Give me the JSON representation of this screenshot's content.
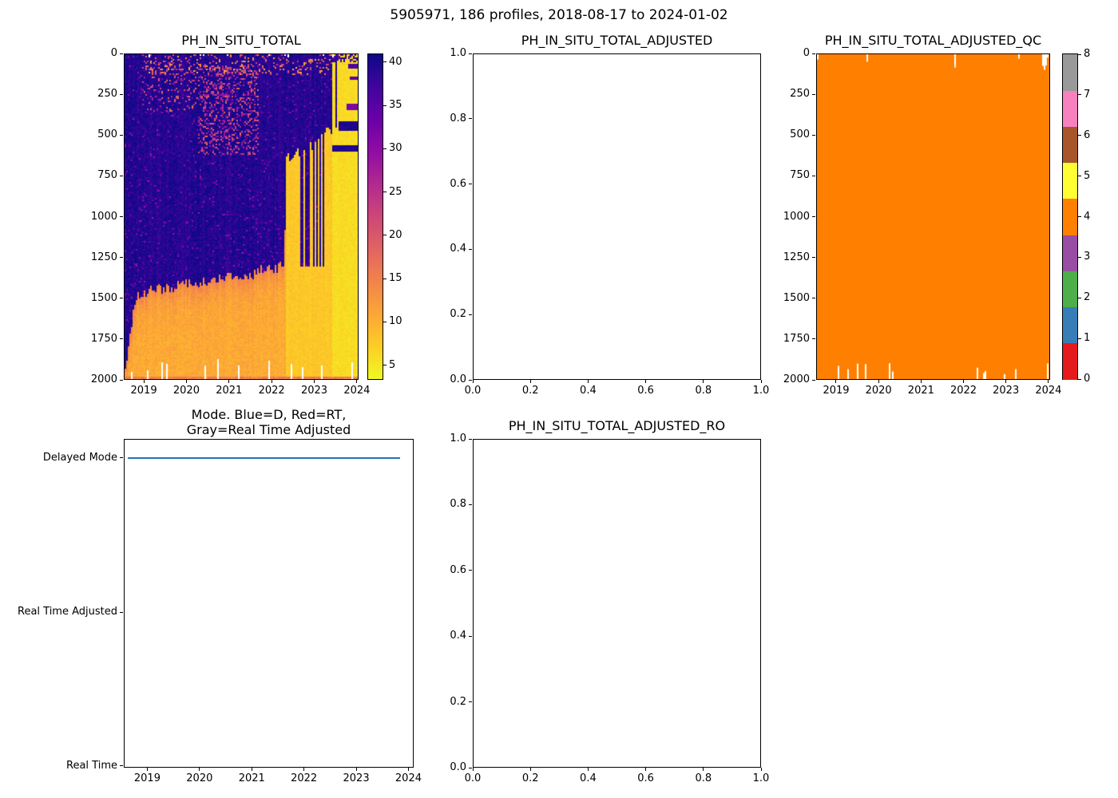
{
  "figure": {
    "title": "5905971, 186 profiles, 2018-08-17 to 2024-01-02",
    "float_id": "5905971",
    "n_profiles": "186",
    "date_start": "2018-08-17",
    "date_end": "2024-01-02",
    "background_color": "#ffffff",
    "text_color": "#000000"
  },
  "chart_data": [
    {
      "id": "ph_in_situ_total",
      "type": "heatmap",
      "title": "PH_IN_SITU_TOTAL",
      "xlabel": "",
      "ylabel": "",
      "xlim": [
        2018.53,
        2024.04
      ],
      "ylim": [
        2000,
        0
      ],
      "y_axis_inverted": true,
      "x_ticks": {
        "values": [
          2019,
          2020,
          2021,
          2022,
          2023,
          2024
        ],
        "labels": [
          "2019",
          "2020",
          "2021",
          "2022",
          "2023",
          "2024"
        ]
      },
      "y_ticks": {
        "values": [
          0,
          250,
          500,
          750,
          1000,
          1250,
          1500,
          1750,
          2000
        ],
        "labels": [
          "0",
          "250",
          "500",
          "750",
          "1000",
          "1250",
          "1500",
          "1750",
          "2000"
        ]
      },
      "colorbar": {
        "ticks": {
          "values": [
            5,
            10,
            15,
            20,
            25,
            30,
            35,
            40
          ],
          "labels": [
            "5",
            "10",
            "15",
            "20",
            "25",
            "30",
            "35",
            "40"
          ]
        },
        "vmin": 3.4,
        "vmax": 40.9,
        "colormap": "plasma_reversed",
        "stops": [
          [
            0,
            "#0d0887"
          ],
          [
            0.1,
            "#41049d"
          ],
          [
            0.2,
            "#6a00a8"
          ],
          [
            0.3,
            "#8f0da4"
          ],
          [
            0.4,
            "#b12a90"
          ],
          [
            0.5,
            "#cc4778"
          ],
          [
            0.6,
            "#e16462"
          ],
          [
            0.7,
            "#f2844b"
          ],
          [
            0.8,
            "#fca636"
          ],
          [
            0.9,
            "#fcce25"
          ],
          [
            1,
            "#f0f921"
          ]
        ]
      },
      "pattern": {
        "description": "Dark high values (~38-41) fill the upper water column early in the record; golden-yellow low values (~5-12) occupy depths below a boundary that shoals from ~1500 m in 2019 to ~1300 m by early 2022, jumps to ~600 m in mid-2022 and reaches the near-surface by late 2023. Magenta speckles appear at 100-600 m during 2020-2021; dark horizontal bands persist near the surface at the right edge; white gaps mark missing data at the surface and below ~1880 m.",
        "deep_boundary": [
          [
            2018.53,
            1980
          ],
          [
            2018.66,
            1720
          ],
          [
            2018.78,
            1500
          ],
          [
            2019.2,
            1450
          ],
          [
            2019.7,
            1430
          ],
          [
            2020.2,
            1405
          ],
          [
            2020.7,
            1385
          ],
          [
            2021.2,
            1365
          ],
          [
            2021.7,
            1340
          ],
          [
            2022.3,
            1310
          ],
          [
            2022.36,
            640
          ],
          [
            2022.7,
            605
          ],
          [
            2023.0,
            565
          ],
          [
            2023.2,
            505
          ],
          [
            2023.32,
            470
          ],
          [
            2023.42,
            460
          ]
        ],
        "surface_yellow_start": 2023.42,
        "right_dark_bands": [
          [
            55,
            90,
            2023.8,
            37
          ],
          [
            140,
            162,
            2023.85,
            36
          ],
          [
            300,
            345,
            2023.78,
            33
          ],
          [
            415,
            470,
            2023.6,
            40.5
          ],
          [
            565,
            600,
            2023.45,
            40.5
          ]
        ]
      }
    },
    {
      "id": "ph_in_situ_total_adjusted",
      "type": "empty",
      "title": "PH_IN_SITU_TOTAL_ADJUSTED",
      "xlabel": "",
      "ylabel": "",
      "xlim": [
        0,
        1
      ],
      "ylim": [
        0,
        1
      ],
      "x_ticks": {
        "values": [
          0,
          0.2,
          0.4,
          0.6,
          0.8,
          1
        ],
        "labels": [
          "0.0",
          "0.2",
          "0.4",
          "0.6",
          "0.8",
          "1.0"
        ]
      },
      "y_ticks": {
        "values": [
          0,
          0.2,
          0.4,
          0.6,
          0.8,
          1
        ],
        "labels": [
          "0.0",
          "0.2",
          "0.4",
          "0.6",
          "0.8",
          "1.0"
        ]
      },
      "values": []
    },
    {
      "id": "ph_in_situ_total_adjusted_qc",
      "type": "heatmap",
      "title": "PH_IN_SITU_TOTAL_ADJUSTED_QC",
      "xlabel": "",
      "ylabel": "",
      "xlim": [
        2018.53,
        2024.04
      ],
      "ylim": [
        2000,
        0
      ],
      "y_axis_inverted": true,
      "x_ticks": {
        "values": [
          2019,
          2020,
          2021,
          2022,
          2023,
          2024
        ],
        "labels": [
          "2019",
          "2020",
          "2021",
          "2022",
          "2023",
          "2024"
        ]
      },
      "y_ticks": {
        "values": [
          0,
          250,
          500,
          750,
          1000,
          1250,
          1500,
          1750,
          2000
        ],
        "labels": [
          "0",
          "250",
          "500",
          "750",
          "1000",
          "1250",
          "1500",
          "1750",
          "2000"
        ]
      },
      "dominant_value": 4,
      "dominant_color": "#ff7f00",
      "colorbar": {
        "ticks": {
          "values": [
            0,
            1,
            2,
            3,
            4,
            5,
            6,
            7,
            8
          ],
          "labels": [
            "0",
            "1",
            "2",
            "3",
            "4",
            "5",
            "6",
            "7",
            "8"
          ]
        },
        "range": [
          0,
          8
        ],
        "colors_bottom_to_top": [
          "#e41a1c",
          "#377eb8",
          "#4daf4a",
          "#984ea3",
          "#ff7f00",
          "#ffff33",
          "#a65628",
          "#f781bf",
          "#999999"
        ]
      },
      "pattern": {
        "description": "QC flag 4 (orange) for nearly all sampled points; small white gaps at the shallowest bins of some profiles and below ~1900 m for scattered profiles."
      }
    },
    {
      "id": "mode",
      "type": "line",
      "title_line1": "Mode. Blue=D, Red=RT,",
      "title_line2": "Gray=Real Time Adjusted",
      "xlabel": "",
      "ylabel": "",
      "xlim": [
        2018.55,
        2024.1
      ],
      "x_ticks": {
        "values": [
          2019,
          2020,
          2021,
          2022,
          2023,
          2024
        ],
        "labels": [
          "2019",
          "2020",
          "2021",
          "2022",
          "2023",
          "2024"
        ]
      },
      "y_categories": [
        "Delayed Mode",
        "Real Time Adjusted",
        "Real Time"
      ],
      "series": [
        {
          "name": "mode",
          "category": "Delayed Mode",
          "x_start": 2018.63,
          "x_end": 2023.84,
          "color": "#1f77b4"
        }
      ]
    },
    {
      "id": "ph_in_situ_total_adjusted_ro",
      "type": "empty",
      "title": "PH_IN_SITU_TOTAL_ADJUSTED_RO",
      "xlabel": "",
      "ylabel": "",
      "xlim": [
        0,
        1
      ],
      "ylim": [
        0,
        1
      ],
      "x_ticks": {
        "values": [
          0,
          0.2,
          0.4,
          0.6,
          0.8,
          1
        ],
        "labels": [
          "0.0",
          "0.2",
          "0.4",
          "0.6",
          "0.8",
          "1.0"
        ]
      },
      "y_ticks": {
        "values": [
          0,
          0.2,
          0.4,
          0.6,
          0.8,
          1
        ],
        "labels": [
          "0.0",
          "0.2",
          "0.4",
          "0.6",
          "0.8",
          "1.0"
        ]
      },
      "values": []
    }
  ]
}
